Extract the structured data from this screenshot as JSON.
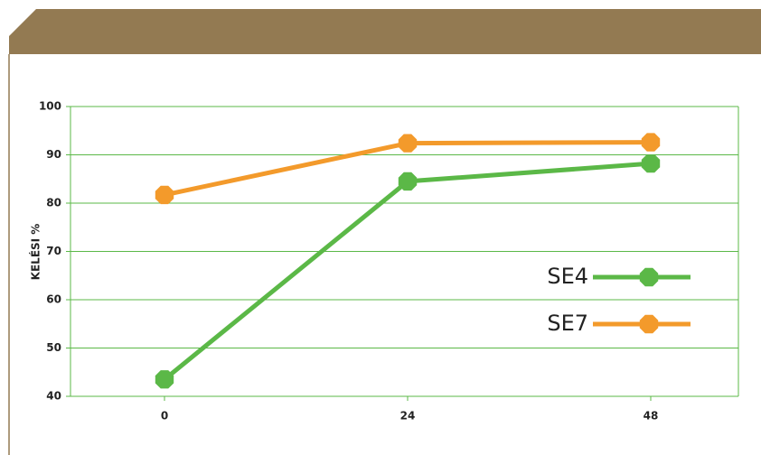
{
  "chart_data": {
    "type": "line",
    "y_label": "KELÉSI %",
    "categories": [
      "0",
      "24",
      "48"
    ],
    "series": [
      {
        "name": "SE4",
        "color": "#5bb847",
        "values": [
          43.5,
          84.5,
          88.2
        ]
      },
      {
        "name": "SE7",
        "color": "#f39a2b",
        "values": [
          81.7,
          92.4,
          92.6
        ]
      }
    ],
    "ylim": [
      40,
      100
    ],
    "yticks": [
      40,
      50,
      60,
      70,
      80,
      90,
      100
    ],
    "grid": true,
    "grid_color": "#5bb847",
    "legend": "right"
  }
}
